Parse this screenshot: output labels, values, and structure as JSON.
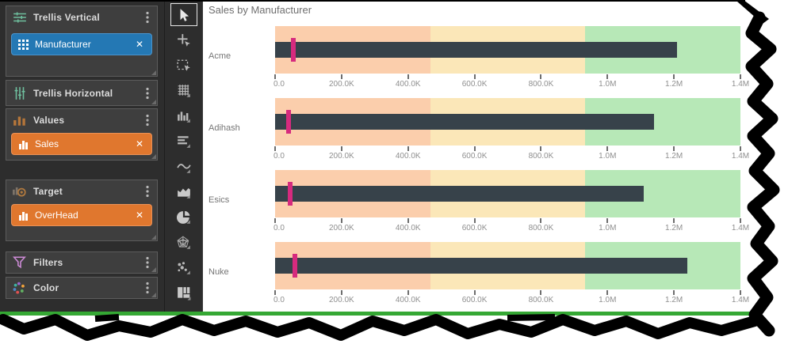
{
  "colors": {
    "pill_blue": "#2478b4",
    "pill_orange": "#e0772e",
    "green_rule": "#35a834"
  },
  "sidebar": {
    "sections": [
      {
        "label": "Trellis Vertical",
        "pills": [
          {
            "label": "Manufacturer",
            "color": "#2478b4",
            "remove": "✕"
          }
        ]
      },
      {
        "label": "Trellis Horizontal",
        "pills": []
      },
      {
        "label": "Values",
        "pills": [
          {
            "label": "Sales",
            "color": "#e0772e",
            "remove": "✕"
          }
        ]
      },
      {
        "label": "Target",
        "pills": [
          {
            "label": "OverHead",
            "color": "#e0772e",
            "remove": "✕"
          }
        ]
      },
      {
        "label": "Filters",
        "pills": []
      },
      {
        "label": "Color",
        "pills": []
      }
    ]
  },
  "toolbar": {
    "tools": [
      "pointer",
      "crosshair",
      "marquee-select",
      "grid-view",
      "column-chart",
      "row-chart",
      "line-chart",
      "area-chart",
      "pie-chart",
      "radar-chart",
      "scatter-chart",
      "treemap"
    ]
  },
  "chart": {
    "title": "Sales by Manufacturer"
  },
  "chart_data": {
    "type": "bar",
    "subtype": "bullet",
    "title": "Sales by Manufacturer",
    "orientation": "horizontal",
    "categories": [
      "Acme",
      "Adihash",
      "Esics",
      "Nuke"
    ],
    "series": [
      {
        "name": "Sales",
        "role": "measure",
        "values": [
          1210000,
          1140000,
          1110000,
          1240000
        ]
      },
      {
        "name": "OverHead",
        "role": "target",
        "values": [
          55000,
          40000,
          45000,
          60000
        ]
      }
    ],
    "xlim": [
      0,
      1400000
    ],
    "x_ticks": [
      0,
      200000,
      400000,
      600000,
      800000,
      1000000,
      1200000,
      1400000
    ],
    "x_tick_labels": [
      "0.0",
      "200.0K",
      "400.0K",
      "600.0K",
      "800.0K",
      "1.0M",
      "1.2M",
      "1.4M"
    ],
    "bands": [
      {
        "from": 0,
        "to": 466667,
        "color": "#fbceac"
      },
      {
        "from": 466667,
        "to": 933333,
        "color": "#fbe7b8"
      },
      {
        "from": 933333,
        "to": 1400000,
        "color": "#b7e8b7"
      }
    ],
    "bar_color": "#37424a",
    "target_color": "#d62a7e",
    "grid": false,
    "legend": false
  }
}
